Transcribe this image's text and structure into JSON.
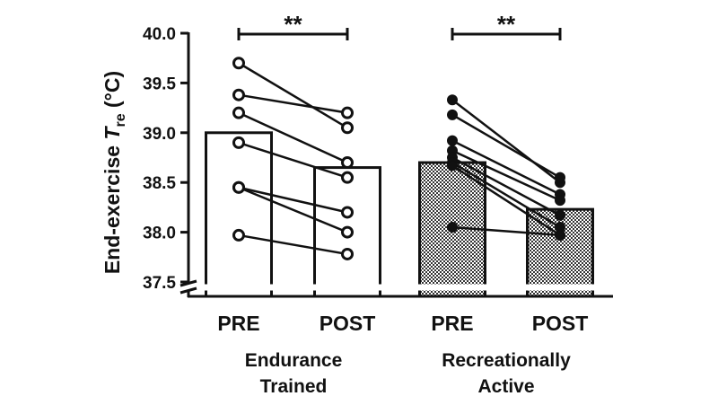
{
  "chart_data": {
    "type": "bar",
    "ylabel_main": "End-exercise ",
    "ylabel_italic": "T",
    "ylabel_sub": "re",
    "ylabel_unit": " (°C)",
    "ylim": [
      37.5,
      40.0
    ],
    "yticks": [
      "37.5",
      "38.0",
      "38.5",
      "39.0",
      "39.5",
      "40.0"
    ],
    "axis_break": true,
    "categories": [
      "PRE",
      "POST",
      "PRE",
      "POST"
    ],
    "groups": [
      {
        "name_line1": "Endurance",
        "name_line2": "Trained",
        "bar_style": "open",
        "marker": "open-circle",
        "pre_mean": 39.0,
        "post_mean": 38.65,
        "significance": "**",
        "paired": [
          {
            "pre": 39.7,
            "post": 39.05
          },
          {
            "pre": 39.38,
            "post": 39.2
          },
          {
            "pre": 39.2,
            "post": 38.7
          },
          {
            "pre": 38.9,
            "post": 38.55
          },
          {
            "pre": 38.45,
            "post": 38.2
          },
          {
            "pre": 38.45,
            "post": 38.0
          },
          {
            "pre": 37.97,
            "post": 37.78
          }
        ]
      },
      {
        "name_line1": "Recreationally",
        "name_line2": "Active",
        "bar_style": "hatched",
        "marker": "filled-circle",
        "pre_mean": 38.7,
        "post_mean": 38.23,
        "significance": "**",
        "paired": [
          {
            "pre": 39.33,
            "post": 38.5
          },
          {
            "pre": 39.18,
            "post": 38.55
          },
          {
            "pre": 38.92,
            "post": 38.38
          },
          {
            "pre": 38.82,
            "post": 38.32
          },
          {
            "pre": 38.75,
            "post": 38.17
          },
          {
            "pre": 38.7,
            "post": 38.05
          },
          {
            "pre": 38.67,
            "post": 37.97
          },
          {
            "pre": 38.05,
            "post": 37.97
          }
        ]
      }
    ]
  }
}
